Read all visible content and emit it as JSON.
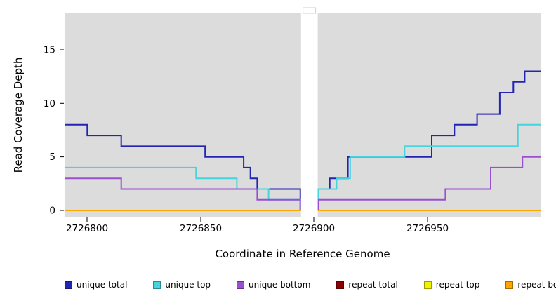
{
  "chart_data": {
    "type": "line",
    "variant": "step",
    "title": "",
    "xlabel": "Coordinate in Reference Genome",
    "ylabel": "Read Coverage Depth",
    "xlim": [
      2726790,
      2727000
    ],
    "ylim": [
      0,
      18.5
    ],
    "x_ticks": [
      2726800,
      2726850,
      2726900,
      2726950
    ],
    "y_ticks": [
      0,
      5,
      10,
      15
    ],
    "grid": false,
    "legend_position": "bottom",
    "panel_bg": "#dcdcdc",
    "gap_region": {
      "from": 2726894,
      "to": 2726902
    },
    "series": [
      {
        "name": "unique total",
        "color": "#2323b4",
        "points": [
          [
            2726790,
            8
          ],
          [
            2726800,
            7
          ],
          [
            2726815,
            6
          ],
          [
            2726852,
            5
          ],
          [
            2726869,
            4
          ],
          [
            2726872,
            3
          ],
          [
            2726875,
            2
          ],
          [
            2726894,
            0
          ],
          [
            2726902,
            2
          ],
          [
            2726907,
            3
          ],
          [
            2726915,
            5
          ],
          [
            2726952,
            7
          ],
          [
            2726962,
            8
          ],
          [
            2726972,
            9
          ],
          [
            2726982,
            11
          ],
          [
            2726988,
            12
          ],
          [
            2726993,
            13
          ],
          [
            2727000,
            13
          ]
        ]
      },
      {
        "name": "unique top",
        "color": "#43d4dd",
        "points": [
          [
            2726790,
            4
          ],
          [
            2726848,
            3
          ],
          [
            2726866,
            2
          ],
          [
            2726880,
            1
          ],
          [
            2726894,
            0
          ],
          [
            2726902,
            2
          ],
          [
            2726910,
            3
          ],
          [
            2726916,
            5
          ],
          [
            2726940,
            6
          ],
          [
            2726990,
            8
          ],
          [
            2727000,
            8
          ]
        ]
      },
      {
        "name": "unique bottom",
        "color": "#9a4fd0",
        "points": [
          [
            2726790,
            3
          ],
          [
            2726815,
            2
          ],
          [
            2726875,
            1
          ],
          [
            2726894,
            0
          ],
          [
            2726902,
            1
          ],
          [
            2726958,
            2
          ],
          [
            2726978,
            4
          ],
          [
            2726992,
            5
          ],
          [
            2727000,
            5
          ]
        ]
      },
      {
        "name": "repeat total",
        "color": "#8b0000",
        "points": [
          [
            2726790,
            0
          ],
          [
            2727000,
            0
          ]
        ]
      },
      {
        "name": "repeat top",
        "color": "#f2f200",
        "points": [
          [
            2726790,
            0
          ],
          [
            2727000,
            0
          ]
        ]
      },
      {
        "name": "repeat bottom",
        "color": "#ffa500",
        "points": [
          [
            2726790,
            0
          ],
          [
            2727000,
            0
          ]
        ]
      }
    ]
  }
}
